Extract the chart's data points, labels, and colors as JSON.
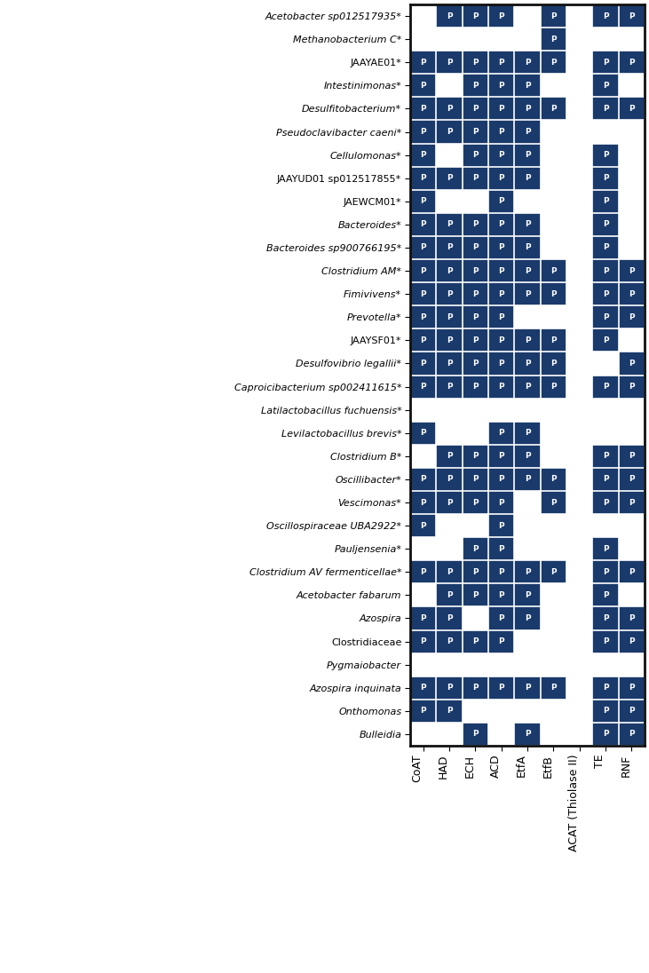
{
  "enzymes": [
    "CoAT",
    "HAD",
    "ECH",
    "ACD",
    "EtfA",
    "EtfB",
    "ACAT (Thiolase II)",
    "TE",
    "RNF"
  ],
  "organisms": [
    "Acetobacter sp012517935*",
    "Methanobacterium C*",
    "JAAYAE01*",
    "Intestinimonas*",
    "Desulfitobacterium*",
    "Pseudoclavibacter caeni*",
    "Cellulomonas*",
    "JAAYUD01 sp012517855*",
    "JAEWCM01*",
    "Bacteroides*",
    "Bacteroides sp900766195*",
    "Clostridium AM*",
    "Fimivivens*",
    "Prevotella*",
    "JAAYSF01*",
    "Desulfovibrio legallii*",
    "Caproicibacterium sp002411615*",
    "Latilactobacillus fuchuensis*",
    "Levilactobacillus brevis*",
    "Clostridium B*",
    "Oscillibacter*",
    "Vescimonas*",
    "Oscillospiraceae UBA2922*",
    "Pauljensenia*",
    "Clostridium AV fermenticellae*",
    "Acetobacter fabarum",
    "Azospira",
    "Clostridiaceae",
    "Pygmaiobacter",
    "Azospira inquinata",
    "Onthomonas",
    "Bulleidia"
  ],
  "italic_organisms": [
    "Acetobacter sp012517935*",
    "Methanobacterium C*",
    "Intestinimonas*",
    "Desulfitobacterium*",
    "Pseudoclavibacter caeni*",
    "Cellulomonas*",
    "Bacteroides*",
    "Bacteroides sp900766195*",
    "Clostridium AM*",
    "Fimivivens*",
    "Prevotella*",
    "Desulfovibrio legallii*",
    "Caproicibacterium sp002411615*",
    "Latilactobacillus fuchuensis*",
    "Levilactobacillus brevis*",
    "Clostridium B*",
    "Oscillibacter*",
    "Vescimonas*",
    "Oscillospiraceae UBA2922*",
    "Pauljensenia*",
    "Clostridium AV fermenticellae*",
    "Acetobacter fabarum",
    "Azospira",
    "Pygmaiobacter",
    "Azospira inquinata",
    "Onthomonas",
    "Bulleidia"
  ],
  "presence": [
    [
      0,
      1,
      1,
      1,
      0,
      1,
      0,
      1,
      1
    ],
    [
      0,
      0,
      0,
      0,
      0,
      1,
      0,
      0,
      0
    ],
    [
      1,
      1,
      1,
      1,
      1,
      1,
      0,
      1,
      1
    ],
    [
      1,
      0,
      1,
      1,
      1,
      0,
      0,
      1,
      0
    ],
    [
      1,
      1,
      1,
      1,
      1,
      1,
      0,
      1,
      1
    ],
    [
      1,
      1,
      1,
      1,
      1,
      0,
      0,
      0,
      0
    ],
    [
      1,
      0,
      1,
      1,
      1,
      0,
      0,
      1,
      0
    ],
    [
      1,
      1,
      1,
      1,
      1,
      0,
      0,
      1,
      0
    ],
    [
      1,
      0,
      0,
      1,
      0,
      0,
      0,
      1,
      0
    ],
    [
      1,
      1,
      1,
      1,
      1,
      0,
      0,
      1,
      0
    ],
    [
      1,
      1,
      1,
      1,
      1,
      0,
      0,
      1,
      0
    ],
    [
      1,
      1,
      1,
      1,
      1,
      1,
      0,
      1,
      1
    ],
    [
      1,
      1,
      1,
      1,
      1,
      1,
      0,
      1,
      1
    ],
    [
      1,
      1,
      1,
      1,
      0,
      0,
      0,
      1,
      1
    ],
    [
      1,
      1,
      1,
      1,
      1,
      1,
      0,
      1,
      0
    ],
    [
      1,
      1,
      1,
      1,
      1,
      1,
      0,
      0,
      1
    ],
    [
      1,
      1,
      1,
      1,
      1,
      1,
      0,
      1,
      1
    ],
    [
      0,
      0,
      0,
      0,
      0,
      0,
      0,
      0,
      0
    ],
    [
      1,
      0,
      0,
      1,
      1,
      0,
      0,
      0,
      0
    ],
    [
      0,
      1,
      1,
      1,
      1,
      0,
      0,
      1,
      1
    ],
    [
      1,
      1,
      1,
      1,
      1,
      1,
      0,
      1,
      1
    ],
    [
      1,
      1,
      1,
      1,
      0,
      1,
      0,
      1,
      1
    ],
    [
      1,
      0,
      0,
      1,
      0,
      0,
      0,
      0,
      0
    ],
    [
      0,
      0,
      1,
      1,
      0,
      0,
      0,
      1,
      0
    ],
    [
      1,
      1,
      1,
      1,
      1,
      1,
      0,
      1,
      1
    ],
    [
      0,
      1,
      1,
      1,
      1,
      0,
      0,
      1,
      0
    ],
    [
      1,
      1,
      0,
      1,
      1,
      0,
      0,
      1,
      1
    ],
    [
      1,
      1,
      1,
      1,
      0,
      0,
      0,
      1,
      1
    ],
    [
      0,
      0,
      0,
      0,
      0,
      0,
      0,
      0,
      0
    ],
    [
      1,
      1,
      1,
      1,
      1,
      1,
      0,
      1,
      1
    ],
    [
      1,
      1,
      0,
      0,
      0,
      0,
      0,
      1,
      1
    ],
    [
      0,
      0,
      1,
      0,
      1,
      0,
      0,
      1,
      1
    ]
  ],
  "bg_color": "#1a3a6b",
  "absent_color": "#ffffff",
  "grid_color": "#ffffff",
  "border_color": "#1a1a1a"
}
